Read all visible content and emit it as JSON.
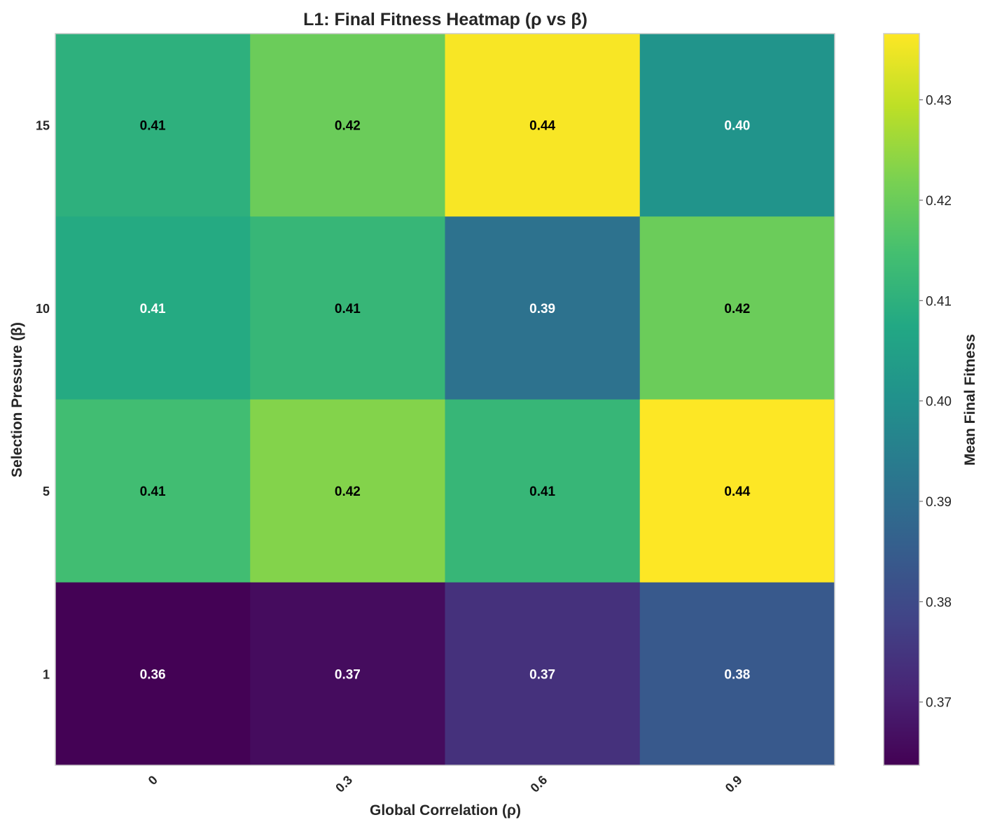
{
  "chart_data": {
    "type": "heatmap",
    "title": "L1: Final Fitness Heatmap (ρ vs β)",
    "xlabel": "Global Correlation (ρ)",
    "ylabel": "Selection Pressure (β)",
    "x_categories": [
      "0",
      "0.3",
      "0.6",
      "0.9"
    ],
    "y_categories": [
      "15",
      "10",
      "5",
      "1"
    ],
    "values": [
      [
        0.41,
        0.42,
        0.436,
        0.401
      ],
      [
        0.408,
        0.412,
        0.391,
        0.42
      ],
      [
        0.414,
        0.423,
        0.412,
        0.437
      ],
      [
        0.364,
        0.366,
        0.374,
        0.384
      ]
    ],
    "cell_labels": [
      [
        "0.41",
        "0.42",
        "0.44",
        "0.40"
      ],
      [
        "0.41",
        "0.41",
        "0.39",
        "0.42"
      ],
      [
        "0.41",
        "0.42",
        "0.41",
        "0.44"
      ],
      [
        "0.36",
        "0.37",
        "0.37",
        "0.38"
      ]
    ],
    "colorbar": {
      "label": "Mean Final Fitness",
      "min": 0.3637,
      "max": 0.4366,
      "ticks": [
        "0.37",
        "0.38",
        "0.39",
        "0.40",
        "0.41",
        "0.42",
        "0.43"
      ],
      "colormap": "viridis"
    },
    "grid": false
  }
}
